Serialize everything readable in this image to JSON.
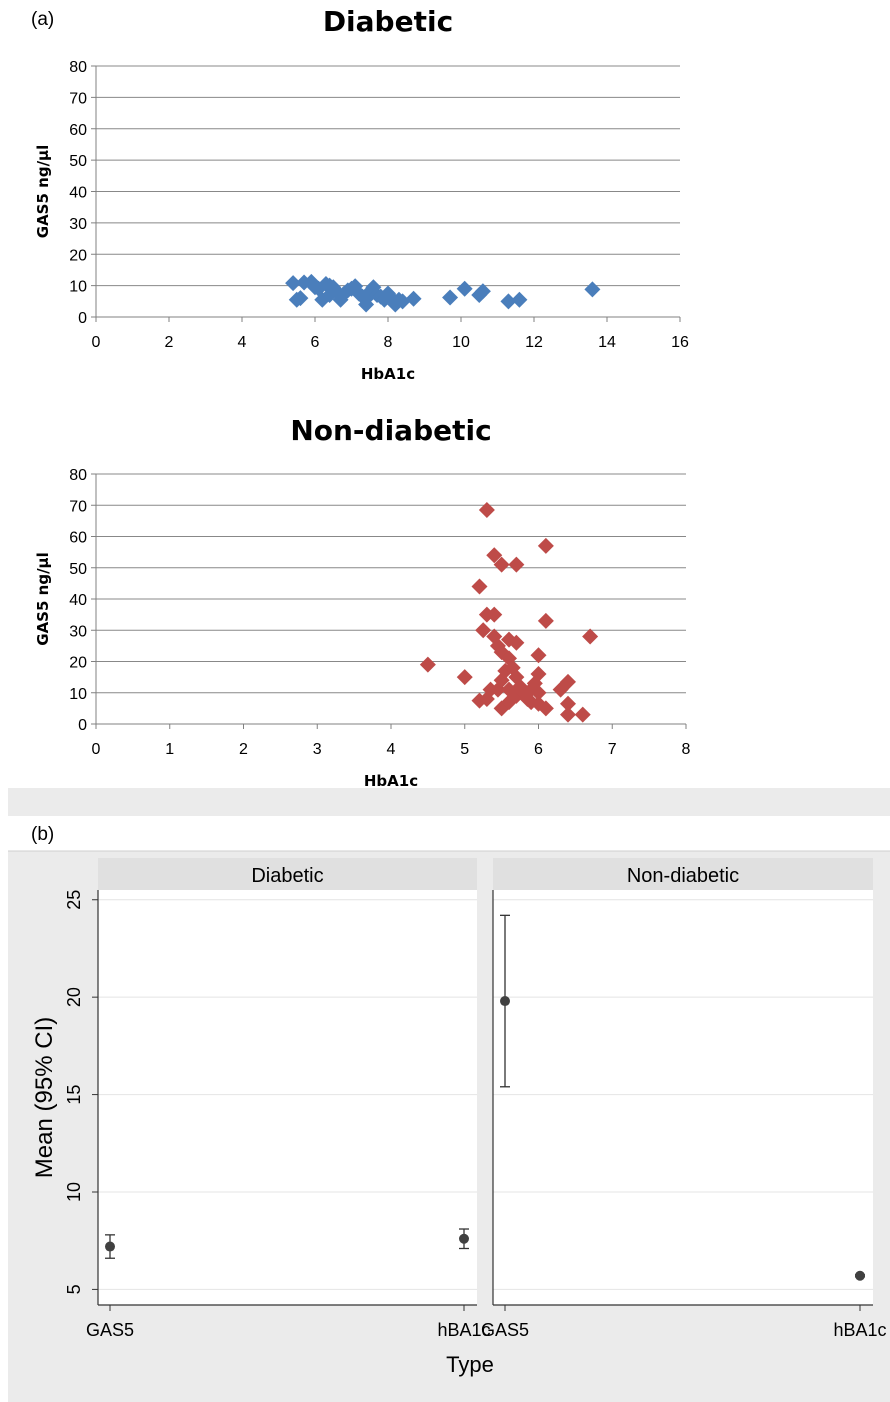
{
  "panel_labels": {
    "a": "(a)",
    "b": "(b)"
  },
  "colors": {
    "diabetic_marker": "#4a7ebb",
    "nondiabetic_marker": "#be4b48",
    "point": "#404040",
    "strip": "#e0e0e0",
    "panel_b_bg": "#ebebeb",
    "gridline": "#888888"
  },
  "chart_data": [
    {
      "type": "scatter",
      "title": "Diabetic",
      "xlabel": "HbA1c",
      "ylabel": "GAS5 ng/µl",
      "xlim": [
        0,
        16
      ],
      "ylim": [
        0,
        80
      ],
      "xticks": [
        0,
        2,
        4,
        6,
        8,
        10,
        12,
        14,
        16
      ],
      "yticks": [
        0,
        10,
        20,
        30,
        40,
        50,
        60,
        70,
        80
      ],
      "grid": "horizontal",
      "marker": "diamond",
      "points": [
        [
          5.4,
          10.8
        ],
        [
          5.5,
          5.5
        ],
        [
          5.6,
          6.0
        ],
        [
          5.7,
          11.0
        ],
        [
          5.9,
          11.2
        ],
        [
          6.0,
          9.5
        ],
        [
          6.1,
          9.0
        ],
        [
          6.2,
          5.5
        ],
        [
          6.3,
          10.5
        ],
        [
          6.4,
          10.0
        ],
        [
          6.4,
          7.0
        ],
        [
          6.5,
          9.5
        ],
        [
          6.6,
          8.0
        ],
        [
          6.7,
          5.5
        ],
        [
          6.8,
          7.5
        ],
        [
          6.9,
          8.5
        ],
        [
          7.0,
          9.0
        ],
        [
          7.1,
          9.8
        ],
        [
          7.2,
          7.5
        ],
        [
          7.3,
          6.5
        ],
        [
          7.4,
          5.8
        ],
        [
          7.4,
          4.0
        ],
        [
          7.5,
          8.0
        ],
        [
          7.6,
          9.5
        ],
        [
          7.7,
          7.0
        ],
        [
          7.8,
          6.5
        ],
        [
          7.9,
          5.5
        ],
        [
          8.0,
          7.5
        ],
        [
          8.1,
          6.0
        ],
        [
          8.2,
          4.0
        ],
        [
          8.3,
          5.5
        ],
        [
          8.4,
          5.0
        ],
        [
          8.7,
          5.8
        ],
        [
          9.7,
          6.2
        ],
        [
          10.1,
          9.0
        ],
        [
          10.5,
          7.0
        ],
        [
          10.6,
          8.2
        ],
        [
          11.3,
          5.0
        ],
        [
          11.6,
          5.5
        ],
        [
          13.6,
          8.8
        ]
      ]
    },
    {
      "type": "scatter",
      "title": "Non-diabetic",
      "xlabel": "HbA1c",
      "ylabel": "GAS5 ng/µl",
      "xlim": [
        0,
        8
      ],
      "ylim": [
        0,
        80
      ],
      "xticks": [
        0,
        1,
        2,
        3,
        4,
        5,
        6,
        7,
        8
      ],
      "yticks": [
        0,
        10,
        20,
        30,
        40,
        50,
        60,
        70,
        80
      ],
      "grid": "horizontal",
      "marker": "diamond",
      "points": [
        [
          4.5,
          19
        ],
        [
          5.0,
          15
        ],
        [
          5.2,
          44
        ],
        [
          5.2,
          7.5
        ],
        [
          5.25,
          30
        ],
        [
          5.3,
          68.5
        ],
        [
          5.3,
          35
        ],
        [
          5.3,
          8
        ],
        [
          5.35,
          11
        ],
        [
          5.4,
          28
        ],
        [
          5.4,
          35
        ],
        [
          5.4,
          54
        ],
        [
          5.45,
          25
        ],
        [
          5.45,
          11
        ],
        [
          5.5,
          51
        ],
        [
          5.5,
          23
        ],
        [
          5.5,
          14
        ],
        [
          5.5,
          5
        ],
        [
          5.55,
          17
        ],
        [
          5.6,
          27
        ],
        [
          5.6,
          21
        ],
        [
          5.6,
          11
        ],
        [
          5.6,
          7
        ],
        [
          5.65,
          18
        ],
        [
          5.7,
          51
        ],
        [
          5.7,
          26
        ],
        [
          5.7,
          15
        ],
        [
          5.7,
          9
        ],
        [
          5.75,
          12
        ],
        [
          5.8,
          10
        ],
        [
          5.85,
          8
        ],
        [
          5.9,
          11
        ],
        [
          5.9,
          7
        ],
        [
          5.95,
          13
        ],
        [
          6.0,
          22
        ],
        [
          6.0,
          16
        ],
        [
          6.0,
          10
        ],
        [
          6.0,
          6.5
        ],
        [
          6.1,
          57
        ],
        [
          6.1,
          33
        ],
        [
          6.1,
          5
        ],
        [
          6.3,
          11
        ],
        [
          6.4,
          13.5
        ],
        [
          6.4,
          6.5
        ],
        [
          6.4,
          3
        ],
        [
          6.6,
          3
        ],
        [
          6.7,
          28
        ]
      ]
    },
    {
      "type": "scatter",
      "subtype": "mean-ci",
      "facets": [
        "Diabetic",
        "Non-diabetic"
      ],
      "categories": [
        "GAS5",
        "hBA1c"
      ],
      "xlabel": "Type",
      "ylabel": "Mean (95% CI)",
      "ylim": [
        4.2,
        25.5
      ],
      "yticks": [
        5,
        10,
        15,
        20,
        25
      ],
      "grid": true,
      "series": [
        {
          "name": "Diabetic",
          "values": [
            {
              "category": "GAS5",
              "mean": 7.2,
              "lo": 6.6,
              "hi": 7.8
            },
            {
              "category": "hBA1c",
              "mean": 7.6,
              "lo": 7.1,
              "hi": 8.1
            }
          ]
        },
        {
          "name": "Non-diabetic",
          "values": [
            {
              "category": "GAS5",
              "mean": 19.8,
              "lo": 15.4,
              "hi": 24.2
            },
            {
              "category": "hBA1c",
              "mean": 5.7,
              "lo": 5.65,
              "hi": 5.75
            }
          ]
        }
      ]
    }
  ]
}
